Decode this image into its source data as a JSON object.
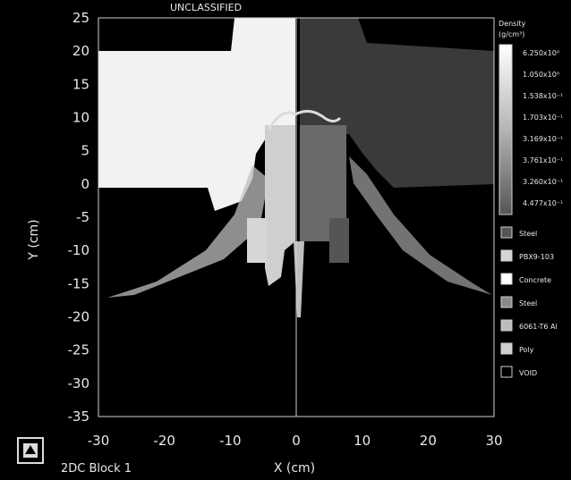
{
  "header": {
    "classification": "UNCLASSIFIED"
  },
  "plot": {
    "x_axis": {
      "label": "X (cm)",
      "ticks": [
        "-30",
        "-20",
        "-10",
        "0",
        "10",
        "20",
        "30"
      ],
      "range": [
        -30,
        30
      ]
    },
    "y_axis": {
      "label": "Y (cm)",
      "ticks": [
        "25",
        "20",
        "15",
        "10",
        "5",
        "0",
        "-5",
        "-10",
        "-15",
        "-20",
        "-25",
        "-30",
        "-35"
      ],
      "range": [
        -35,
        25
      ]
    }
  },
  "density_legend": {
    "title_line1": "Density",
    "title_line2": "(g/cm³)",
    "values": [
      "6.250x10⁰",
      "1.050x10⁰",
      "1.538x10⁻¹",
      "1.703x10⁻¹",
      "3.169x10⁻¹",
      "3.761x10⁻¹",
      "3.260x10⁻¹",
      "4.477x10⁻¹"
    ]
  },
  "material_legend": {
    "items": [
      {
        "label": "Steel",
        "color": "#555555"
      },
      {
        "label": "PBX9-103",
        "color": "#d6d6d6"
      },
      {
        "label": "Concrete",
        "color": "#ffffff"
      },
      {
        "label": "Steel",
        "color": "#8a8a8a"
      },
      {
        "label": "6061-T6 Al",
        "color": "#bdbdbd"
      },
      {
        "label": "Poly",
        "color": "#cfcfcf"
      },
      {
        "label": "VOID",
        "color": "#000000"
      }
    ]
  },
  "footer": {
    "caption": "2DC  Block  1",
    "logo": "sandia-thunderbird-icon"
  }
}
